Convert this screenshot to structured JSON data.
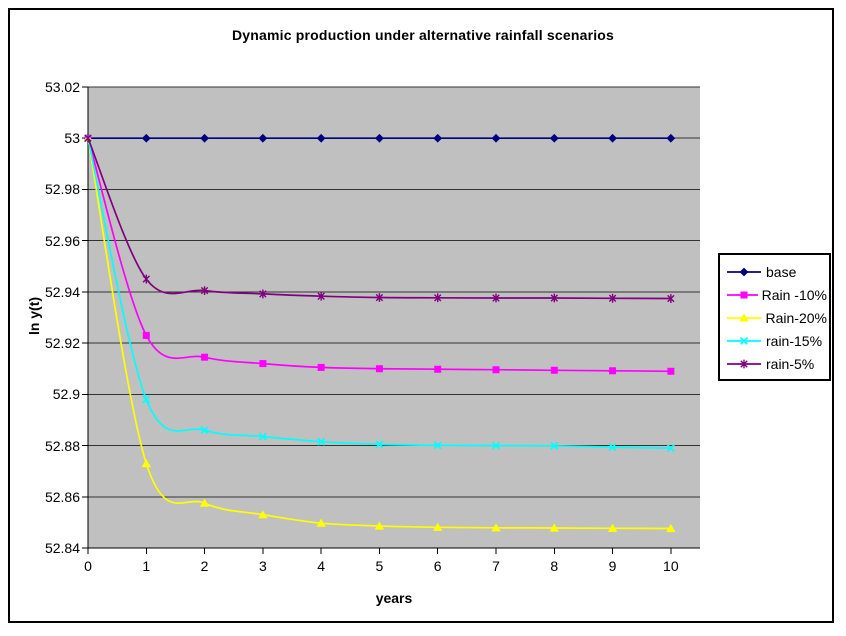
{
  "chart_data": {
    "type": "line",
    "title": "Dynamic production under alternative rainfall scenarios",
    "xlabel": "years",
    "ylabel": "ln y(t)",
    "x": [
      0,
      1,
      2,
      3,
      4,
      5,
      6,
      7,
      8,
      9,
      10
    ],
    "xlim": [
      0,
      10.5
    ],
    "ylim": [
      52.84,
      53.02
    ],
    "yticks": [
      52.84,
      52.86,
      52.88,
      52.9,
      52.92,
      52.94,
      52.96,
      52.98,
      53,
      53.02
    ],
    "ytick_labels": [
      "52.84",
      "52.86",
      "52.88",
      "52.9",
      "52.92",
      "52.94",
      "52.96",
      "52.98",
      "53",
      "53.02"
    ],
    "grid": true,
    "legend_position": "right",
    "plot_bg_color": "#c0c0c0",
    "gridline_color": "#333333",
    "axis_color": "#000000",
    "series": [
      {
        "name": "base",
        "color": "#000080",
        "marker": "diamond",
        "values": [
          53,
          53,
          53,
          53,
          53,
          53,
          53,
          53,
          53,
          53,
          53
        ]
      },
      {
        "name": "Rain -10%",
        "color": "#ff00ff",
        "marker": "square",
        "values": [
          53,
          52.923,
          52.9145,
          52.912,
          52.9105,
          52.91,
          52.9098,
          52.9096,
          52.9094,
          52.9092,
          52.909
        ]
      },
      {
        "name": "Rain-20%",
        "color": "#ffff00",
        "marker": "triangle",
        "values": [
          53,
          52.873,
          52.8575,
          52.853,
          52.8497,
          52.8486,
          52.8481,
          52.8479,
          52.8478,
          52.8477,
          52.8476
        ]
      },
      {
        "name": "rain-15%",
        "color": "#00ffff",
        "marker": "x",
        "values": [
          53,
          52.898,
          52.886,
          52.8835,
          52.8815,
          52.8805,
          52.8801,
          52.88,
          52.8799,
          52.8794,
          52.879
        ]
      },
      {
        "name": "rain-5%",
        "color": "#800080",
        "marker": "star",
        "values": [
          53,
          52.945,
          52.9405,
          52.9392,
          52.9383,
          52.9378,
          52.9377,
          52.9376,
          52.9376,
          52.9375,
          52.9374
        ]
      }
    ]
  }
}
